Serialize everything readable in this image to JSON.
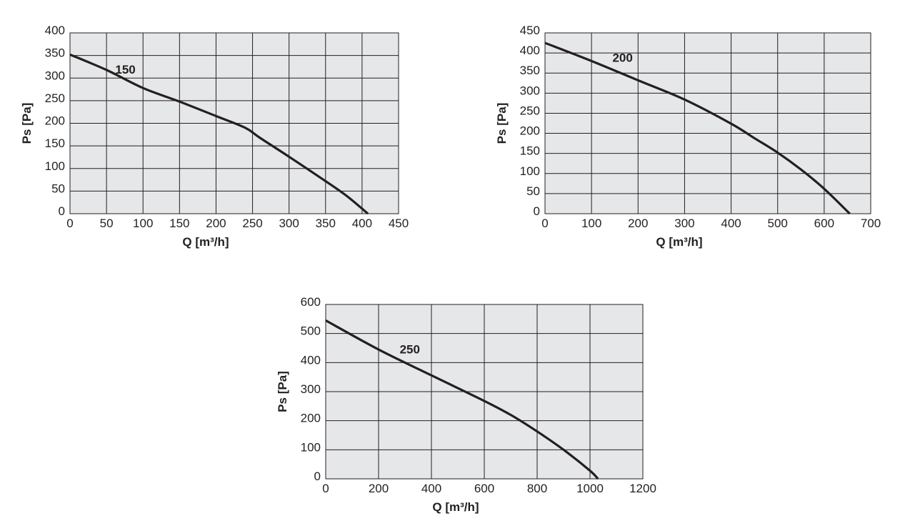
{
  "colors": {
    "plot_background": "#e6e7e8",
    "grid": "#231f20",
    "curve": "#231f20",
    "text": "#231f20"
  },
  "chart_data": [
    {
      "type": "line",
      "xlabel": "Q [m³/h]",
      "ylabel": "Ps [Pa]",
      "xlim": [
        0,
        450
      ],
      "ylim": [
        0,
        400
      ],
      "x_ticks": [
        "0",
        "50",
        "100",
        "150",
        "200",
        "250",
        "300",
        "350",
        "400",
        "450"
      ],
      "y_ticks": [
        "0",
        "50",
        "100",
        "150",
        "200",
        "250",
        "300",
        "350",
        "400"
      ],
      "grid": true,
      "series": [
        {
          "name": "150",
          "x": [
            0,
            50,
            100,
            150,
            200,
            240,
            260,
            300,
            350,
            380,
            408
          ],
          "y": [
            352,
            318,
            278,
            248,
            216,
            190,
            168,
            126,
            72,
            38,
            0
          ]
        }
      ]
    },
    {
      "type": "line",
      "xlabel": "Q [m³/h]",
      "ylabel": "Ps [Pa]",
      "xlim": [
        0,
        700
      ],
      "ylim": [
        0,
        450
      ],
      "x_ticks": [
        "0",
        "100",
        "200",
        "300",
        "400",
        "500",
        "600",
        "700"
      ],
      "y_ticks": [
        "0",
        "50",
        "100",
        "150",
        "200",
        "250",
        "300",
        "350",
        "400",
        "450"
      ],
      "grid": true,
      "series": [
        {
          "name": "200",
          "x": [
            0,
            100,
            200,
            300,
            400,
            450,
            500,
            550,
            600,
            655
          ],
          "y": [
            425,
            380,
            332,
            284,
            224,
            188,
            152,
            110,
            62,
            0
          ]
        }
      ]
    },
    {
      "type": "line",
      "xlabel": "Q [m³/h]",
      "ylabel": "Ps [Pa]",
      "xlim": [
        0,
        1200
      ],
      "ylim": [
        0,
        600
      ],
      "x_ticks": [
        "0",
        "200",
        "400",
        "600",
        "800",
        "1000",
        "1200"
      ],
      "y_ticks": [
        "0",
        "100",
        "200",
        "300",
        "400",
        "500",
        "600"
      ],
      "grid": true,
      "series": [
        {
          "name": "250",
          "x": [
            0,
            200,
            400,
            600,
            700,
            800,
            900,
            1000,
            1030
          ],
          "y": [
            545,
            445,
            356,
            268,
            220,
            163,
            100,
            28,
            0
          ]
        }
      ]
    }
  ]
}
